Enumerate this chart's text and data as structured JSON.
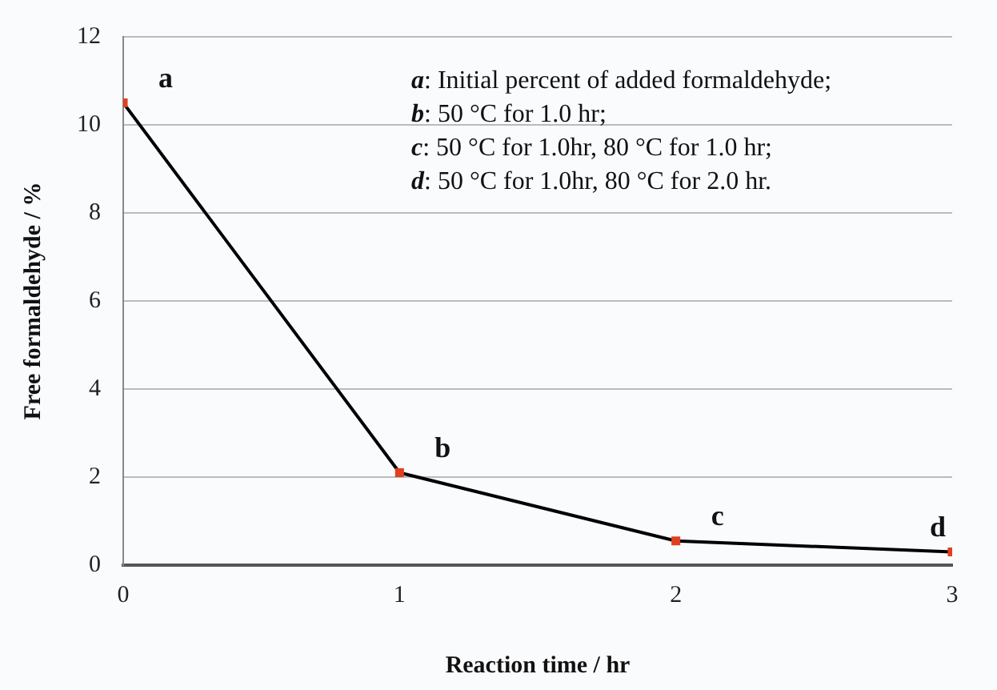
{
  "chart_data": {
    "type": "line",
    "xlabel": "Reaction time / hr",
    "ylabel": "Free formaldehyde / %",
    "x": [
      0,
      1,
      2,
      3
    ],
    "series": [
      {
        "color": "#000000",
        "colors": [
          "#e0401f",
          "#e0401f",
          "#e0401f",
          "#e0401f"
        ],
        "values": [
          10.5,
          2.1,
          0.55,
          0.3
        ]
      }
    ],
    "xlim": [
      0,
      3
    ],
    "xticks": [
      0,
      1,
      2,
      3
    ],
    "ylim": [
      0,
      12
    ],
    "yticks": [
      0,
      2,
      4,
      6,
      8,
      10,
      12
    ],
    "grid": "y",
    "legend": false,
    "marker": "square",
    "line_style": "solid",
    "annotations": [
      "a: Initial percent of added formaldehyde;",
      "b: 50 °C for 1.0 hr;",
      "c: 50 °C for 1.0hr, 80 °C for 1.0 hr;",
      "d: 50 °C for 1.0hr, 80 °C for 2.0 hr.",
      {
        "text": "a",
        "x": 0,
        "y": 10.5
      },
      {
        "text": "b",
        "x": 1,
        "y": 2.1
      },
      {
        "text": "c",
        "x": 2,
        "y": 0.55
      },
      {
        "text": "d",
        "x": 3,
        "y": 0.3
      }
    ]
  }
}
